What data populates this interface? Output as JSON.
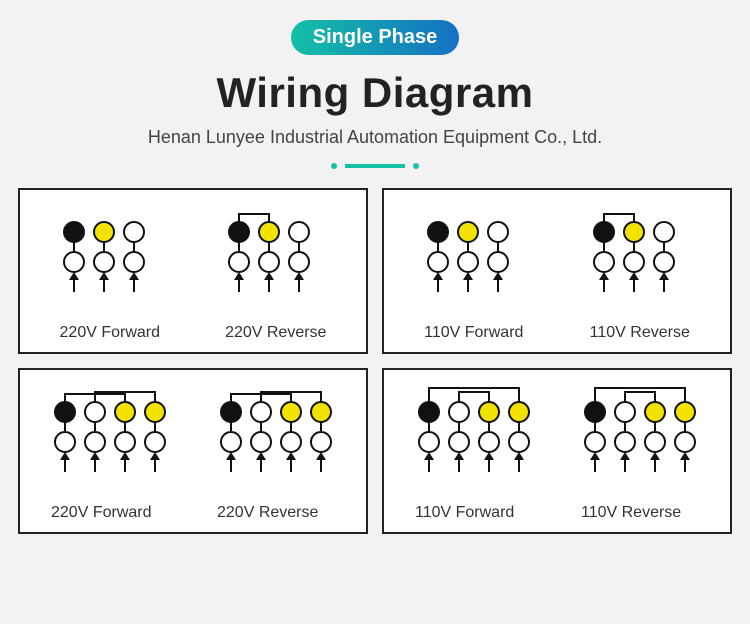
{
  "header": {
    "badge": "Single Phase",
    "title": "Wiring Diagram",
    "subtitle": "Henan Lunyee Industrial Automation Equipment Co., Ltd."
  },
  "style": {
    "background": "#f2f2f2",
    "panel_bg": "#ffffff",
    "panel_border": "#222222",
    "badge_gradient": [
      "#14c0a6",
      "#1570c4"
    ],
    "title_fontsize": 42,
    "subtitle_fontsize": 18,
    "label_fontsize": 16,
    "circle_radius": 10,
    "circle_stroke": "#111111",
    "circle_stroke_width": 2,
    "fill_black": "#111111",
    "fill_yellow": "#f2e200",
    "fill_white": "#ffffff",
    "arrow_color": "#111111",
    "jumper_color": "#111111",
    "row_gap": 30,
    "col_gap": 30
  },
  "panels": [
    {
      "columns": 3,
      "blocks": [
        {
          "label": "220V Forward",
          "top_fills": [
            "black",
            "yellow",
            "white"
          ],
          "arrows": [
            0,
            1,
            2
          ],
          "jumpers": []
        },
        {
          "label": "220V Reverse",
          "top_fills": [
            "black",
            "yellow",
            "white"
          ],
          "arrows": [
            0,
            1,
            2
          ],
          "jumpers": [
            [
              0,
              1
            ]
          ]
        }
      ]
    },
    {
      "columns": 3,
      "blocks": [
        {
          "label": "110V Forward",
          "top_fills": [
            "black",
            "yellow",
            "white"
          ],
          "arrows": [
            0,
            1,
            2
          ],
          "jumpers": []
        },
        {
          "label": "110V Reverse",
          "top_fills": [
            "black",
            "yellow",
            "white"
          ],
          "arrows": [
            0,
            1,
            2
          ],
          "jumpers": [
            [
              0,
              1
            ]
          ]
        }
      ]
    },
    {
      "columns": 4,
      "blocks": [
        {
          "label": "220V Forward",
          "top_fills": [
            "black",
            "white",
            "yellow",
            "yellow"
          ],
          "arrows": [
            0,
            1,
            2,
            3
          ],
          "jumpers": [
            [
              0,
              2
            ],
            [
              1,
              3
            ]
          ]
        },
        {
          "label": "220V Reverse",
          "top_fills": [
            "black",
            "white",
            "yellow",
            "yellow"
          ],
          "arrows": [
            0,
            1,
            2,
            3
          ],
          "jumpers": [
            [
              0,
              2
            ],
            [
              1,
              3
            ]
          ]
        }
      ]
    },
    {
      "columns": 4,
      "blocks": [
        {
          "label": "110V Forward",
          "top_fills": [
            "black",
            "white",
            "yellow",
            "yellow"
          ],
          "arrows": [
            0,
            1,
            2,
            3
          ],
          "jumpers": [
            [
              0,
              3
            ],
            [
              1,
              2
            ]
          ]
        },
        {
          "label": "110V Reverse",
          "top_fills": [
            "black",
            "white",
            "yellow",
            "yellow"
          ],
          "arrows": [
            0,
            1,
            2,
            3
          ],
          "jumpers": [
            [
              0,
              3
            ],
            [
              1,
              2
            ]
          ]
        }
      ]
    }
  ]
}
